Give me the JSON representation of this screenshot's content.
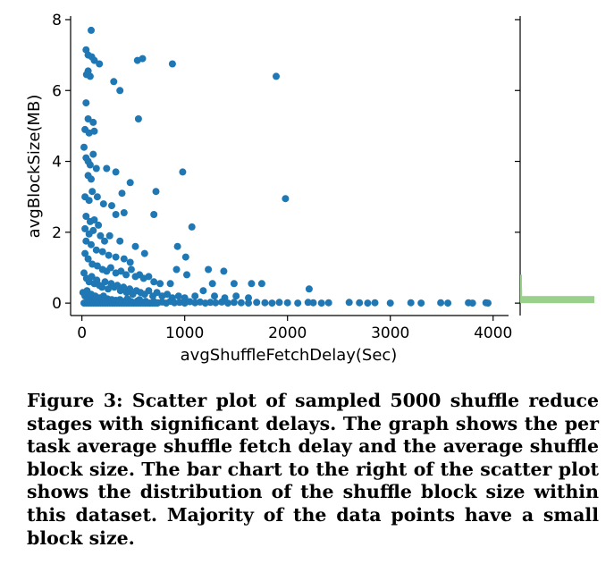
{
  "chart_data": {
    "type": "scatter",
    "title": "",
    "xlabel": "avgShuffleFetchDelay(Sec)",
    "ylabel": "avgBlockSize(MB)",
    "xlim": [
      -110,
      4150
    ],
    "ylim": [
      -0.35,
      8.1
    ],
    "xticks": [
      0,
      1000,
      2000,
      3000,
      4000
    ],
    "yticks": [
      0,
      2,
      4,
      6,
      8
    ],
    "grid": false,
    "marker_color": "#1f77b4",
    "series": [
      {
        "points": [
          [
            90,
            7.7
          ],
          [
            40,
            7.15
          ],
          [
            60,
            7.0
          ],
          [
            95,
            6.95
          ],
          [
            120,
            6.85
          ],
          [
            170,
            6.75
          ],
          [
            60,
            6.55
          ],
          [
            45,
            6.45
          ],
          [
            80,
            6.4
          ],
          [
            310,
            6.25
          ],
          [
            370,
            6.0
          ],
          [
            540,
            6.85
          ],
          [
            590,
            6.9
          ],
          [
            880,
            6.75
          ],
          [
            1890,
            6.4
          ],
          [
            40,
            5.65
          ],
          [
            60,
            5.2
          ],
          [
            110,
            5.1
          ],
          [
            550,
            5.2
          ],
          [
            30,
            4.9
          ],
          [
            70,
            4.8
          ],
          [
            120,
            4.85
          ],
          [
            20,
            4.4
          ],
          [
            40,
            4.1
          ],
          [
            60,
            4.0
          ],
          [
            80,
            3.9
          ],
          [
            110,
            4.2
          ],
          [
            140,
            3.8
          ],
          [
            60,
            3.6
          ],
          [
            90,
            3.5
          ],
          [
            240,
            3.8
          ],
          [
            330,
            3.7
          ],
          [
            470,
            3.4
          ],
          [
            980,
            3.7
          ],
          [
            1980,
            2.95
          ],
          [
            720,
            3.15
          ],
          [
            390,
            3.1
          ],
          [
            30,
            3.0
          ],
          [
            70,
            2.9
          ],
          [
            100,
            3.15
          ],
          [
            150,
            3.0
          ],
          [
            210,
            2.8
          ],
          [
            290,
            2.75
          ],
          [
            330,
            2.5
          ],
          [
            410,
            2.55
          ],
          [
            700,
            2.5
          ],
          [
            40,
            2.45
          ],
          [
            80,
            2.3
          ],
          [
            120,
            2.35
          ],
          [
            160,
            2.2
          ],
          [
            30,
            2.1
          ],
          [
            70,
            1.95
          ],
          [
            110,
            2.05
          ],
          [
            180,
            1.9
          ],
          [
            220,
            1.75
          ],
          [
            1070,
            2.15
          ],
          [
            270,
            1.9
          ],
          [
            370,
            1.75
          ],
          [
            520,
            1.6
          ],
          [
            610,
            1.4
          ],
          [
            930,
            1.6
          ],
          [
            1010,
            1.3
          ],
          [
            40,
            1.75
          ],
          [
            90,
            1.65
          ],
          [
            140,
            1.5
          ],
          [
            200,
            1.45
          ],
          [
            260,
            1.35
          ],
          [
            330,
            1.3
          ],
          [
            410,
            1.25
          ],
          [
            470,
            1.15
          ],
          [
            30,
            1.4
          ],
          [
            60,
            1.25
          ],
          [
            100,
            1.1
          ],
          [
            150,
            1.05
          ],
          [
            200,
            0.95
          ],
          [
            240,
            0.9
          ],
          [
            280,
            1.0
          ],
          [
            330,
            0.85
          ],
          [
            380,
            0.9
          ],
          [
            430,
            0.8
          ],
          [
            480,
            0.95
          ],
          [
            520,
            0.75
          ],
          [
            560,
            0.8
          ],
          [
            600,
            0.7
          ],
          [
            650,
            0.75
          ],
          [
            700,
            0.6
          ],
          [
            760,
            0.55
          ],
          [
            860,
            0.55
          ],
          [
            920,
            0.95
          ],
          [
            1020,
            0.8
          ],
          [
            1230,
            0.95
          ],
          [
            1270,
            0.55
          ],
          [
            1380,
            0.9
          ],
          [
            1480,
            0.55
          ],
          [
            1650,
            0.55
          ],
          [
            1750,
            0.55
          ],
          [
            2210,
            0.4
          ],
          [
            20,
            0.85
          ],
          [
            45,
            0.7
          ],
          [
            70,
            0.6
          ],
          [
            95,
            0.75
          ],
          [
            120,
            0.55
          ],
          [
            145,
            0.65
          ],
          [
            170,
            0.5
          ],
          [
            195,
            0.45
          ],
          [
            225,
            0.6
          ],
          [
            255,
            0.4
          ],
          [
            285,
            0.55
          ],
          [
            315,
            0.45
          ],
          [
            345,
            0.5
          ],
          [
            375,
            0.35
          ],
          [
            405,
            0.45
          ],
          [
            435,
            0.3
          ],
          [
            465,
            0.4
          ],
          [
            495,
            0.25
          ],
          [
            530,
            0.35
          ],
          [
            570,
            0.3
          ],
          [
            610,
            0.25
          ],
          [
            650,
            0.35
          ],
          [
            690,
            0.2
          ],
          [
            730,
            0.3
          ],
          [
            780,
            0.2
          ],
          [
            830,
            0.25
          ],
          [
            880,
            0.15
          ],
          [
            940,
            0.2
          ],
          [
            1000,
            0.15
          ],
          [
            1100,
            0.2
          ],
          [
            1180,
            0.35
          ],
          [
            1290,
            0.2
          ],
          [
            1390,
            0.15
          ],
          [
            1500,
            0.2
          ],
          [
            1620,
            0.15
          ],
          [
            10,
            0.3
          ],
          [
            30,
            0.2
          ],
          [
            50,
            0.35
          ],
          [
            70,
            0.15
          ],
          [
            90,
            0.25
          ],
          [
            110,
            0.1
          ],
          [
            130,
            0.2
          ],
          [
            150,
            0.05
          ],
          [
            170,
            0.15
          ],
          [
            190,
            0.1
          ],
          [
            210,
            0.2
          ],
          [
            230,
            0.08
          ],
          [
            250,
            0.12
          ],
          [
            270,
            0.05
          ],
          [
            290,
            0.1
          ],
          [
            310,
            0.03
          ],
          [
            330,
            0.08
          ],
          [
            350,
            0.02
          ],
          [
            370,
            0.1
          ],
          [
            390,
            0.05
          ],
          [
            420,
            0.02
          ],
          [
            450,
            0.1
          ],
          [
            480,
            0.04
          ],
          [
            510,
            0.01
          ],
          [
            540,
            0.06
          ],
          [
            580,
            0.02
          ],
          [
            620,
            0.05
          ],
          [
            660,
            0.0
          ],
          [
            700,
            0.04
          ],
          [
            740,
            0.01
          ],
          [
            780,
            0.03
          ],
          [
            820,
            0.0
          ],
          [
            860,
            0.05
          ],
          [
            900,
            0.01
          ],
          [
            950,
            0.02
          ],
          [
            1000,
            0.0
          ],
          [
            1050,
            0.04
          ],
          [
            1100,
            0.01
          ],
          [
            1150,
            0.03
          ],
          [
            1200,
            0.0
          ],
          [
            1250,
            0.02
          ],
          [
            1300,
            0.01
          ],
          [
            1360,
            0.03
          ],
          [
            1420,
            0.0
          ],
          [
            1480,
            0.02
          ],
          [
            1550,
            0.01
          ],
          [
            1620,
            0.0
          ],
          [
            1700,
            0.02
          ],
          [
            1780,
            0.01
          ],
          [
            1850,
            0.0
          ],
          [
            1920,
            0.02
          ],
          [
            2000,
            0.01
          ],
          [
            2100,
            0.0
          ],
          [
            2200,
            0.02
          ],
          [
            2250,
            0.01
          ],
          [
            2330,
            0.0
          ],
          [
            2400,
            0.01
          ],
          [
            2600,
            0.02
          ],
          [
            2700,
            0.01
          ],
          [
            2780,
            0.0
          ],
          [
            2850,
            0.01
          ],
          [
            3000,
            0.0
          ],
          [
            3200,
            0.01
          ],
          [
            3300,
            0.0
          ],
          [
            3490,
            0.01
          ],
          [
            3560,
            0.0
          ],
          [
            3760,
            0.01
          ],
          [
            3800,
            0.0
          ],
          [
            3930,
            0.01
          ],
          [
            3950,
            0.0
          ],
          [
            60,
            0.1
          ],
          [
            85,
            0.05
          ],
          [
            135,
            0.12
          ],
          [
            160,
            0.02
          ],
          [
            205,
            0.06
          ],
          [
            245,
            0.01
          ],
          [
            300,
            0.06
          ],
          [
            360,
            0.01
          ],
          [
            440,
            0.12
          ],
          [
            560,
            0.1
          ]
        ]
      }
    ],
    "marginal_histogram": {
      "type": "bar",
      "orientation": "horizontal",
      "color": "#98d08c",
      "bin_edges": [
        0.0,
        0.2,
        0.4,
        0.6,
        0.8
      ],
      "counts": [
        4500,
        120,
        60,
        40
      ]
    }
  },
  "caption": "Figure 3: Scatter plot of sampled 5000 shuffle reduce stages with significant delays. The graph shows the per task average shuffle fetch delay and the average shuffle block size. The bar chart to the right of the scatter plot shows the distribution of the shuffle block size within this dataset. Majority of the data points have a small block size."
}
